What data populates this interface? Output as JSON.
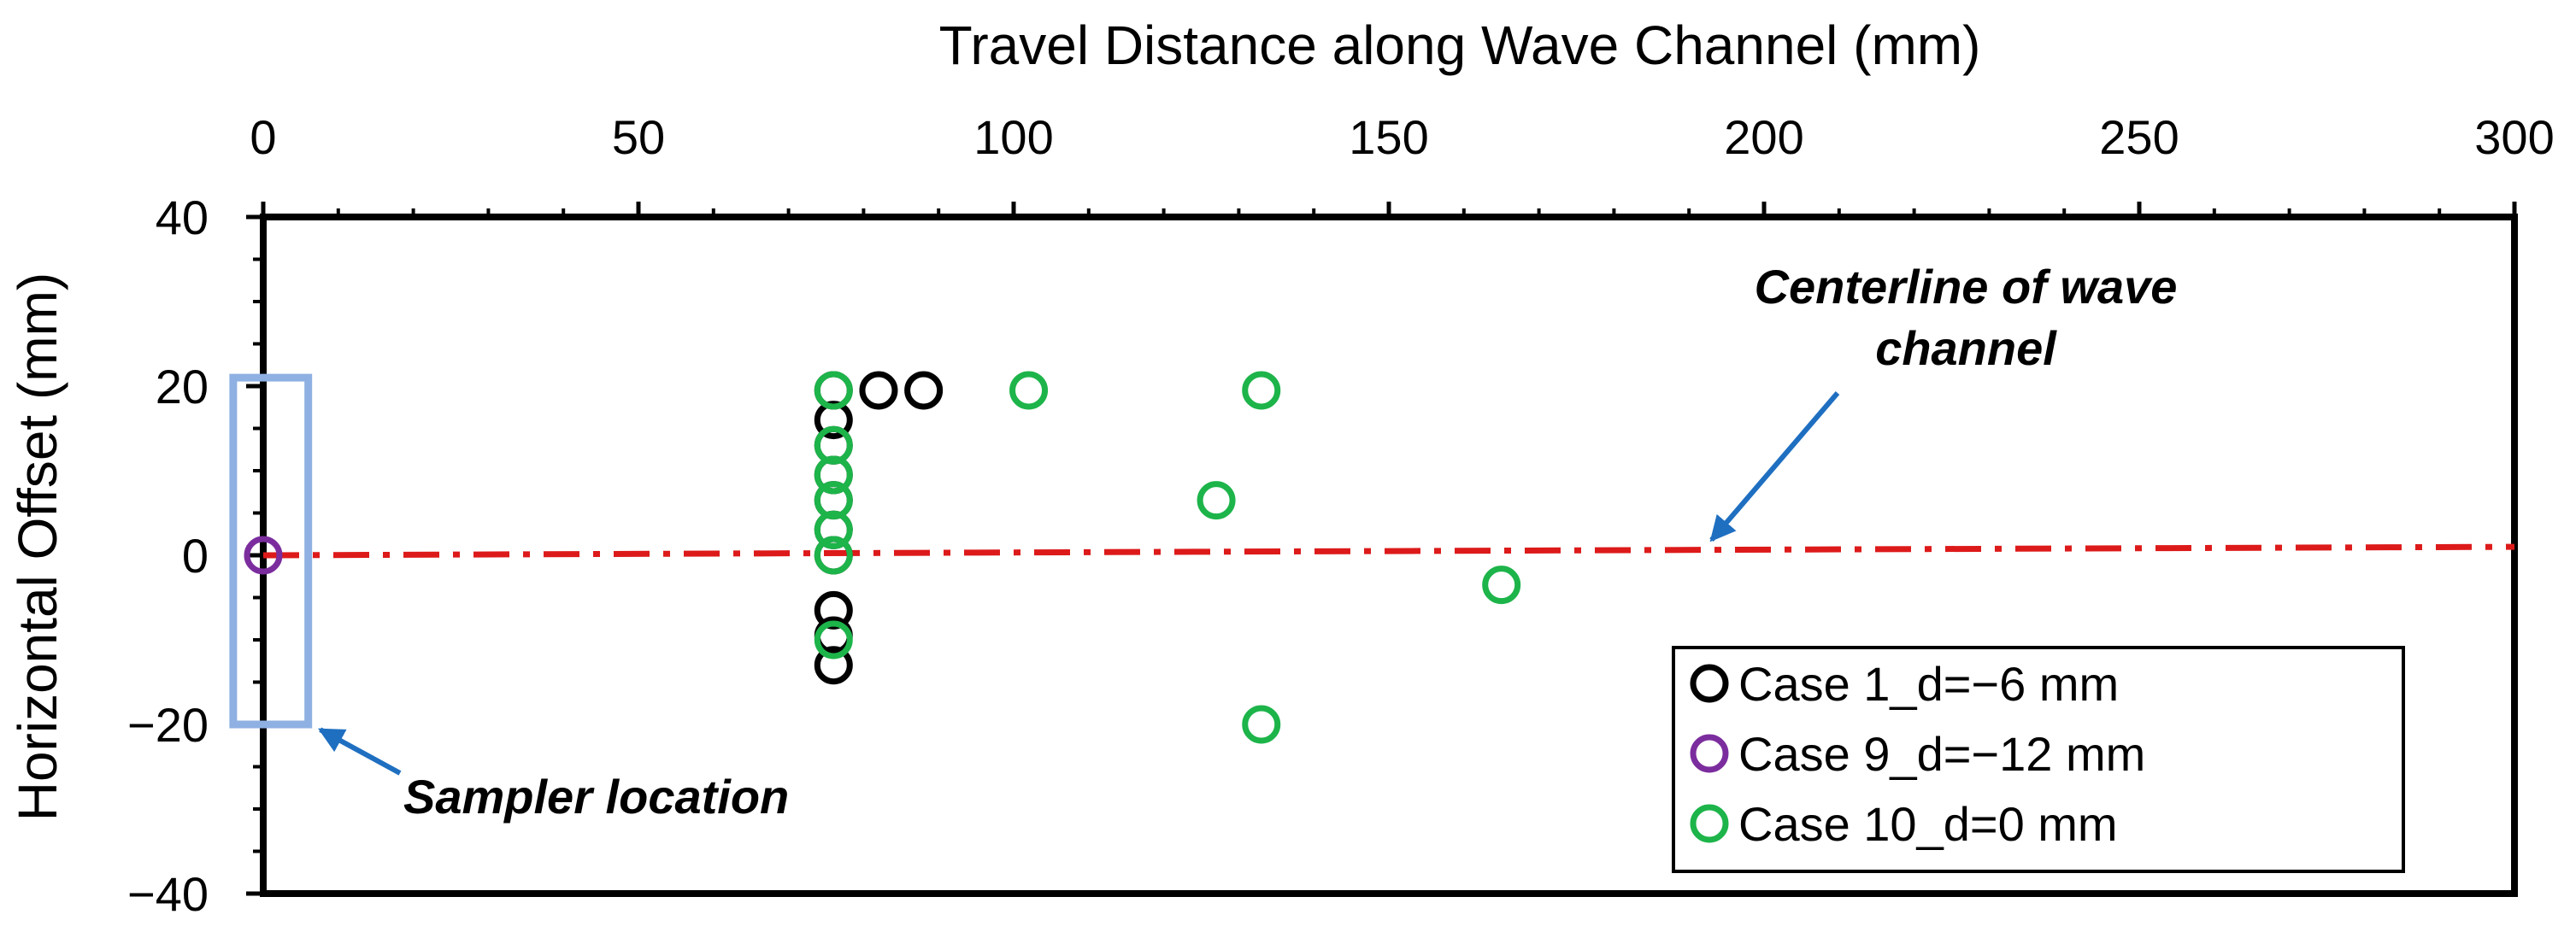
{
  "chart_data": {
    "type": "scatter",
    "title": "",
    "xlabel": "Travel Distance along Wave Channel (mm)",
    "ylabel": "Horizontal Offset (mm)",
    "xlim": [
      0,
      300
    ],
    "ylim": [
      -40,
      40
    ],
    "x_ticks": [
      0,
      50,
      100,
      150,
      200,
      250,
      300
    ],
    "y_ticks": [
      40,
      20,
      0,
      -20,
      -40
    ],
    "x_tick_labels": [
      "0",
      "50",
      "100",
      "150",
      "200",
      "250",
      "300"
    ],
    "y_tick_labels": [
      "40",
      "20",
      "0",
      "−20",
      "−40"
    ],
    "x_axis_position": "top",
    "grid": false,
    "legend_position": "bottom-right",
    "series": [
      {
        "name": "Case 1_d=−6 mm",
        "color": "#000000",
        "marker": "open-circle",
        "points": [
          [
            76,
            19.5
          ],
          [
            76,
            16
          ],
          [
            76,
            13
          ],
          [
            76,
            9.5
          ],
          [
            76,
            6.5
          ],
          [
            76,
            3
          ],
          [
            76,
            0
          ],
          [
            76,
            -6.5
          ],
          [
            76,
            -9.5
          ],
          [
            76,
            -13
          ],
          [
            82,
            19.5
          ],
          [
            88,
            19.5
          ]
        ]
      },
      {
        "name": "Case 9_d=−12 mm",
        "color": "#7b2d9e",
        "marker": "open-circle",
        "points": [
          [
            0,
            0
          ]
        ]
      },
      {
        "name": "Case 10_d=0 mm",
        "color": "#1db44a",
        "marker": "open-circle",
        "points": [
          [
            76,
            19.5
          ],
          [
            76,
            13
          ],
          [
            76,
            9.5
          ],
          [
            76,
            6.5
          ],
          [
            76,
            3
          ],
          [
            76,
            0
          ],
          [
            76,
            -10
          ],
          [
            102,
            19.5
          ],
          [
            127,
            6.5
          ],
          [
            133,
            19.5
          ],
          [
            133,
            -20
          ],
          [
            165,
            -3.5
          ]
        ]
      }
    ],
    "centerline": {
      "color": "#dd1a1a",
      "style": "dash-dot",
      "from": [
        0,
        0
      ],
      "to": [
        300,
        1
      ]
    },
    "sampler_box": {
      "color": "#8fb0e2",
      "x_range": [
        -4,
        6
      ],
      "y_range": [
        -20,
        21
      ]
    },
    "annotations": [
      {
        "text_lines": [
          "Centerline of wave",
          "channel"
        ],
        "arrow_color": "#1f6fc1",
        "arrow_tip": [
          193,
          1
        ]
      },
      {
        "text_lines": [
          "Sampler location"
        ],
        "arrow_color": "#1f6fc1",
        "arrow_tip": [
          6,
          -19
        ]
      }
    ]
  }
}
